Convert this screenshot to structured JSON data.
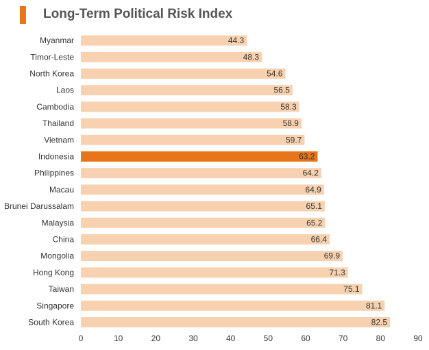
{
  "title": "Long-Term Political Risk Index",
  "colors": {
    "accent": "#e8751a",
    "bar": "#f8d2b0",
    "highlight": "#e8751a",
    "highlight_text": "#ffffff"
  },
  "chart_data": {
    "type": "bar",
    "orientation": "horizontal",
    "title": "Long-Term Political Risk Index",
    "categories": [
      "Myanmar",
      "Timor-Leste",
      "North Korea",
      "Laos",
      "Cambodia",
      "Thailand",
      "Vietnam",
      "Indonesia",
      "Philippines",
      "Macau",
      "Brunei Darussalam",
      "Malaysia",
      "China",
      "Mongolia",
      "Hong Kong",
      "Taiwan",
      "Singapore",
      "South Korea"
    ],
    "values": [
      44.3,
      48.3,
      54.6,
      56.5,
      58.3,
      58.9,
      59.7,
      63.2,
      64.2,
      64.9,
      65.1,
      65.2,
      66.4,
      69.9,
      71.3,
      75.1,
      81.1,
      82.5
    ],
    "highlight": "Indonesia",
    "xlim": [
      0,
      90
    ],
    "xticks": [
      0,
      10,
      20,
      30,
      40,
      50,
      60,
      70,
      80,
      90
    ],
    "grid": false,
    "xlabel": "",
    "ylabel": ""
  }
}
